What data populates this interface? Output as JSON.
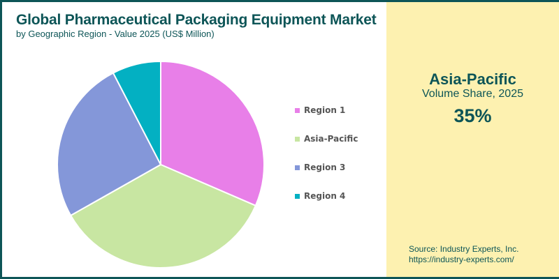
{
  "header": {
    "title": "Global Pharmaceutical Packaging Equipment Market",
    "subtitle": "by Geographic Region - Value 2025 (US$ Million)"
  },
  "highlight": {
    "region": "Asia-Pacific",
    "metric": "Volume Share, 2025",
    "value": "35%"
  },
  "source": {
    "line1": "Source: Industry Experts, Inc.",
    "line2": "https://industry-experts.com/"
  },
  "colors": {
    "border": "#0d5557",
    "panel_bg": "#fdf1b0",
    "text_accent": "#0d5557"
  },
  "chart_data": {
    "type": "pie",
    "title": "Global Pharmaceutical Packaging Equipment Market",
    "subtitle": "by Geographic Region - Value 2025 (US$ Million)",
    "categories": [
      "Region 1",
      "Asia-Pacific",
      "Region 3",
      "Region 4"
    ],
    "values": [
      31.5,
      35.3,
      25.6,
      7.6
    ],
    "colors": [
      "#e87fe8",
      "#c8e6a2",
      "#8497d9",
      "#03b0c2"
    ],
    "start_angle_deg": 0,
    "direction": "clockwise",
    "legend_position": "right"
  }
}
